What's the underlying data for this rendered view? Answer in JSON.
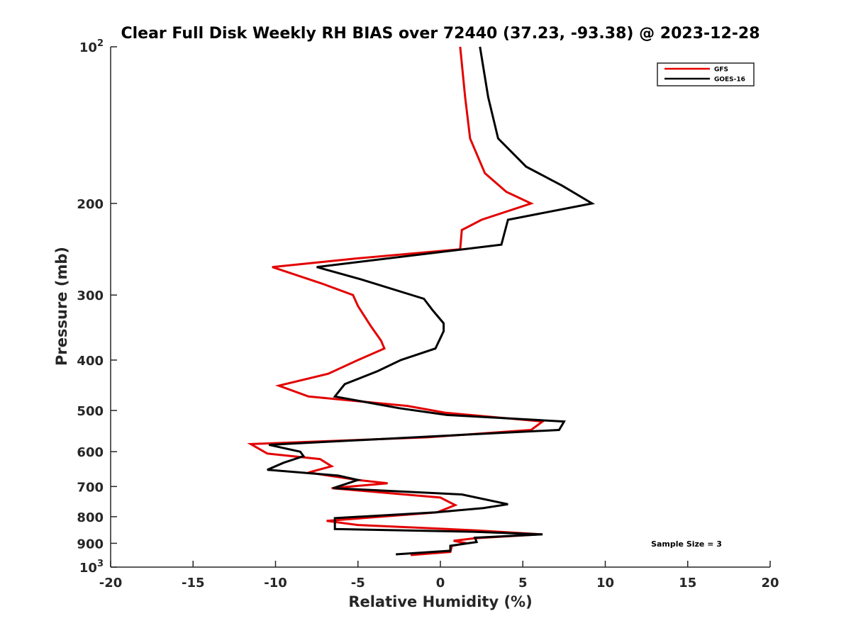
{
  "chart_data": {
    "type": "line",
    "title": "Clear Full Disk Weekly RH BIAS over 72440 (37.23, -93.38) @ 2023-12-28",
    "xlabel": "Relative Humidity (%)",
    "ylabel": "Pressure (mb)",
    "xlim": [
      -20,
      20
    ],
    "ylim": [
      100,
      1000
    ],
    "y_scale": "log",
    "y_reversed": true,
    "grid": false,
    "x_ticks": [
      -20,
      -15,
      -10,
      -5,
      0,
      5,
      10,
      15,
      20
    ],
    "x_tick_labels": [
      "-20",
      "-15",
      "-10",
      "-5",
      "0",
      "5",
      "10",
      "15",
      "20"
    ],
    "y_ticks": [
      {
        "value": 100,
        "base": "10",
        "exp": "2"
      },
      {
        "value": 200,
        "label": "200"
      },
      {
        "value": 300,
        "label": "300"
      },
      {
        "value": 400,
        "label": "400"
      },
      {
        "value": 500,
        "label": "500"
      },
      {
        "value": 600,
        "label": "600"
      },
      {
        "value": 700,
        "label": "700"
      },
      {
        "value": 800,
        "label": "800"
      },
      {
        "value": 900,
        "label": "900"
      },
      {
        "value": 1000,
        "base": "10",
        "exp": "3"
      }
    ],
    "legend": {
      "location": "top-right"
    },
    "annotation": "Sample Size = 3",
    "series": [
      {
        "name": "GFS",
        "color": "#e30000",
        "points": [
          [
            1.2,
            100
          ],
          [
            1.5,
            125
          ],
          [
            1.8,
            150
          ],
          [
            2.7,
            175
          ],
          [
            4.0,
            190
          ],
          [
            5.5,
            200
          ],
          [
            2.5,
            215
          ],
          [
            1.3,
            225
          ],
          [
            1.2,
            245
          ],
          [
            -5.0,
            255
          ],
          [
            -10.2,
            265
          ],
          [
            -7.2,
            285
          ],
          [
            -5.3,
            300
          ],
          [
            -5.0,
            315
          ],
          [
            -4.2,
            345
          ],
          [
            -3.6,
            367
          ],
          [
            -3.4,
            380
          ],
          [
            -5.0,
            400
          ],
          [
            -6.8,
            425
          ],
          [
            -9.8,
            448
          ],
          [
            -8.0,
            470
          ],
          [
            -2.0,
            490
          ],
          [
            0.3,
            505
          ],
          [
            6.2,
            525
          ],
          [
            5.5,
            545
          ],
          [
            -0.8,
            563
          ],
          [
            -11.5,
            580
          ],
          [
            -10.5,
            605
          ],
          [
            -7.3,
            620
          ],
          [
            -6.6,
            640
          ],
          [
            -8.0,
            658
          ],
          [
            -5.0,
            680
          ],
          [
            -3.2,
            690
          ],
          [
            -6.6,
            705
          ],
          [
            0.0,
            735
          ],
          [
            0.9,
            760
          ],
          [
            -0.2,
            785
          ],
          [
            -6.9,
            815
          ],
          [
            -5.0,
            830
          ],
          [
            2.2,
            850
          ],
          [
            6.1,
            865
          ],
          [
            2.1,
            880
          ],
          [
            0.8,
            890
          ],
          [
            1.6,
            900
          ],
          [
            0.7,
            910
          ],
          [
            0.6,
            935
          ],
          [
            -1.8,
            948
          ]
        ]
      },
      {
        "name": "GOES-16",
        "color": "#000000",
        "points": [
          [
            2.4,
            100
          ],
          [
            2.9,
            125
          ],
          [
            3.5,
            150
          ],
          [
            5.2,
            170
          ],
          [
            7.4,
            185
          ],
          [
            9.2,
            200
          ],
          [
            4.1,
            215
          ],
          [
            3.7,
            240
          ],
          [
            -7.5,
            265
          ],
          [
            -4.8,
            280
          ],
          [
            -1.0,
            305
          ],
          [
            -0.5,
            320
          ],
          [
            0.2,
            340
          ],
          [
            0.2,
            352
          ],
          [
            -0.3,
            380
          ],
          [
            -2.4,
            400
          ],
          [
            -3.8,
            420
          ],
          [
            -5.8,
            445
          ],
          [
            -6.4,
            470
          ],
          [
            -2.5,
            495
          ],
          [
            0.4,
            510
          ],
          [
            7.5,
            525
          ],
          [
            7.2,
            545
          ],
          [
            -0.2,
            560
          ],
          [
            -10.4,
            582
          ],
          [
            -8.5,
            600
          ],
          [
            -8.3,
            612
          ],
          [
            -9.5,
            630
          ],
          [
            -10.5,
            650
          ],
          [
            -6.2,
            667
          ],
          [
            -5.0,
            680
          ],
          [
            -6.5,
            705
          ],
          [
            1.3,
            725
          ],
          [
            4.1,
            757
          ],
          [
            2.6,
            770
          ],
          [
            -0.3,
            785
          ],
          [
            -6.4,
            805
          ],
          [
            -6.4,
            845
          ],
          [
            2.0,
            855
          ],
          [
            6.2,
            865
          ],
          [
            2.1,
            878
          ],
          [
            2.2,
            895
          ],
          [
            0.6,
            910
          ],
          [
            0.6,
            930
          ],
          [
            -2.7,
            945
          ]
        ]
      }
    ]
  }
}
